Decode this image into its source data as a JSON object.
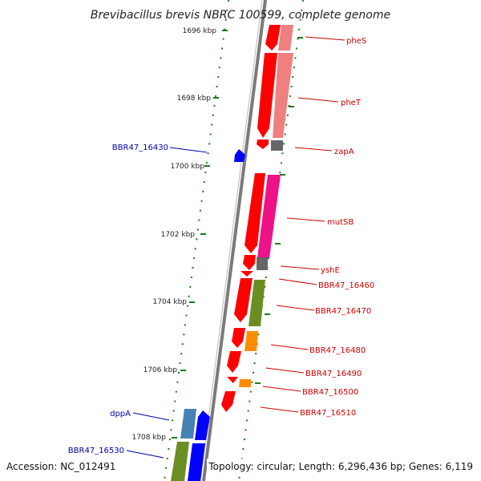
{
  "title": "Brevibacillus brevis NBRC 100599, complete genome",
  "accession": "Accession: NC_012491",
  "stats": "Topology: circular; Length: 6,296,436 bp; Genes: 6,119",
  "kbp_ticks": [
    "1696 kbp",
    "1698 kbp",
    "1700 kbp",
    "1702 kbp",
    "1704 kbp",
    "1706 kbp",
    "1708 kbp"
  ],
  "genes_right": [
    "pheS",
    "pheT",
    "zapA",
    "mutSB",
    "yshE",
    "BBR47_16460",
    "BBR47_16470",
    "BBR47_16480",
    "BBR47_16490",
    "BBR47_16500",
    "BBR47_16510"
  ],
  "genes_left": [
    "BBR47_16430",
    "dppA",
    "BBR47_16530"
  ],
  "colors": {
    "forward_label": "#cc0000",
    "reverse_label": "#0000aa",
    "backbone": "#7a7a7a",
    "tick": "#1b7a1b",
    "cds_red": "#ff0000",
    "cds_pink": "#ee1188",
    "cds_salmon": "#f08080",
    "cds_gray": "#666666",
    "cds_olive": "#6b8e23",
    "cds_orange": "#ff8c00",
    "cds_blue": "#0000ff",
    "cds_steel": "#4682b4"
  }
}
